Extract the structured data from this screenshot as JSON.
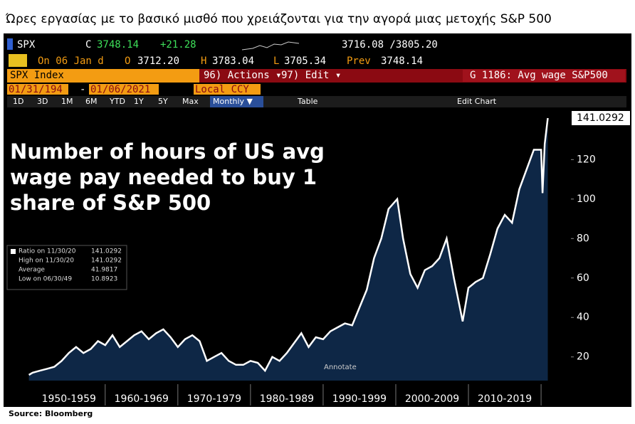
{
  "header": {
    "title": "Ώρες εργασίας με το βασικό μισθό που χρειάζονται για την αγορά μιας μετοχής S&P 500",
    "ticker": "SPX",
    "close_label": "C",
    "close": "3748.14",
    "change": "+21.28",
    "range": "3716.08 /3805.20",
    "date": "On 06 Jan d",
    "open_label": "O",
    "open": "3712.20",
    "high_label": "H",
    "high": "3783.04",
    "low_label": "L",
    "low": "3705.34",
    "prev_label": "Prev",
    "prev": "3748.14",
    "security": "SPX Index",
    "actions": "96) Actions ▾",
    "edit": "97) Edit ▾",
    "chart_id": "G 1186: Avg wage S&P500",
    "start_date": "01/31/194",
    "date_sep": "-",
    "end_date": "01/06/2021",
    "currency": "Local CCY",
    "periods": [
      "1D",
      "3D",
      "1M",
      "6M",
      "YTD",
      "1Y",
      "5Y",
      "Max"
    ],
    "frequency": "Monthly ▼",
    "table": "Table",
    "edit_chart": "Edit Chart",
    "source": "Source: Bloomberg"
  },
  "chart_data": {
    "type": "area",
    "annotation": [
      "Number of hours of US avg",
      "wage pay needed to buy 1",
      "share of S&P 500"
    ],
    "annotate_button": "Annotate",
    "legend_rows": [
      [
        "Ratio on 11/30/20",
        "141.0292"
      ],
      [
        "High on 11/30/20",
        "141.0292"
      ],
      [
        "Average",
        "41.9817"
      ],
      [
        "Low on 06/30/49",
        "10.8923"
      ]
    ],
    "x": [
      1949.5,
      1950,
      1951,
      1952,
      1953,
      1954,
      1955,
      1956,
      1957,
      1958,
      1959,
      1960,
      1961,
      1962,
      1963,
      1964,
      1965,
      1966,
      1967,
      1968,
      1969,
      1970,
      1971,
      1972,
      1973,
      1974,
      1975,
      1976,
      1977,
      1978,
      1979,
      1980,
      1981,
      1982,
      1983,
      1984,
      1985,
      1986,
      1987,
      1988,
      1989,
      1990,
      1991,
      1992,
      1993,
      1994,
      1995,
      1996,
      1997,
      1998,
      1999,
      2000.2,
      2001,
      2002,
      2003,
      2004,
      2005,
      2006,
      2007,
      2008,
      2009.2,
      2010,
      2011,
      2012,
      2013,
      2014,
      2015,
      2016,
      2017,
      2018,
      2019,
      2020.0,
      2020.2,
      2020.5,
      2020.92
    ],
    "series": [
      {
        "name": "Ratio",
        "color": "#ffffff",
        "fill": "#0e2746",
        "values": [
          10.8923,
          12,
          13,
          14,
          15,
          18,
          22,
          25,
          22,
          24,
          28,
          26,
          31,
          25,
          28,
          31,
          33,
          29,
          32,
          34,
          30,
          25,
          29,
          31,
          28,
          18,
          20,
          22,
          18,
          16,
          16,
          18,
          17,
          13,
          20,
          18,
          22,
          27,
          32,
          25,
          30,
          29,
          33,
          35,
          37,
          36,
          45,
          54,
          70,
          80,
          95,
          100,
          80,
          62,
          55,
          64,
          66,
          70,
          80,
          60,
          38,
          55,
          58,
          60,
          72,
          85,
          92,
          88,
          105,
          115,
          125,
          125,
          103,
          128,
          141.0292
        ]
      }
    ],
    "xlim": [
      1946.5,
      2024.5
    ],
    "xticks": [
      {
        "value": 1955,
        "label": "1950-1959"
      },
      {
        "value": 1965,
        "label": "1960-1969"
      },
      {
        "value": 1975,
        "label": "1970-1979"
      },
      {
        "value": 1985,
        "label": "1980-1989"
      },
      {
        "value": 1995,
        "label": "1990-1999"
      },
      {
        "value": 2005,
        "label": "2000-2009"
      },
      {
        "value": 2015,
        "label": "2010-2019"
      }
    ],
    "ylim": [
      8,
      145
    ],
    "yticks": [
      20,
      40,
      60,
      80,
      100,
      120
    ]
  }
}
